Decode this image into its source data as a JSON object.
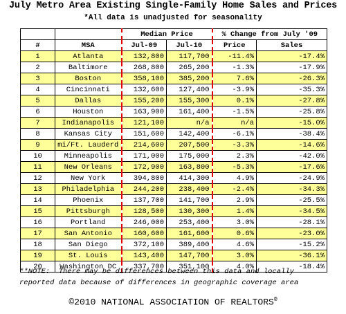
{
  "title": "July Metro Area Existing Single-Family Home Sales and Prices",
  "subtitle": "*All data is unadjusted for seasonality",
  "table": {
    "group_headers": {
      "median_price": "Median Price",
      "pct_change": "% Change from July '09"
    },
    "col_headers": {
      "rank": "#",
      "msa": "MSA",
      "jul09": "Jul-09",
      "jul10": "Jul-10",
      "price": "Price",
      "sales": "Sales"
    },
    "rows": [
      {
        "rank": "1",
        "msa": "Atlanta",
        "jul09": "132,800",
        "jul10": "117,700",
        "price": "-11.4%",
        "sales": "-17.4%"
      },
      {
        "rank": "2",
        "msa": "Baltimore",
        "jul09": "268,800",
        "jul10": "265,200",
        "price": "-1.3%",
        "sales": "-17.9%"
      },
      {
        "rank": "3",
        "msa": "Boston",
        "jul09": "358,100",
        "jul10": "385,200",
        "price": "7.6%",
        "sales": "-26.3%"
      },
      {
        "rank": "4",
        "msa": "Cincinnati",
        "jul09": "132,600",
        "jul10": "127,400",
        "price": "-3.9%",
        "sales": "-35.3%"
      },
      {
        "rank": "5",
        "msa": "Dallas",
        "jul09": "155,200",
        "jul10": "155,300",
        "price": "0.1%",
        "sales": "-27.8%"
      },
      {
        "rank": "6",
        "msa": "Houston",
        "jul09": "163,900",
        "jul10": "161,400",
        "price": "-1.5%",
        "sales": "-25.8%"
      },
      {
        "rank": "7",
        "msa": "Indianapolis",
        "jul09": "121,100",
        "jul10": "n/a",
        "price": "n/a",
        "sales": "-15.0%"
      },
      {
        "rank": "8",
        "msa": "Kansas City",
        "jul09": "151,600",
        "jul10": "142,400",
        "price": "-6.1%",
        "sales": "-38.4%"
      },
      {
        "rank": "9",
        "msa": "mi/Ft. Lauderd",
        "jul09": "214,600",
        "jul10": "207,500",
        "price": "-3.3%",
        "sales": "-14.6%"
      },
      {
        "rank": "10",
        "msa": "Minneapolis",
        "jul09": "171,000",
        "jul10": "175,000",
        "price": "2.3%",
        "sales": "-42.0%"
      },
      {
        "rank": "11",
        "msa": "New Orleans",
        "jul09": "172,900",
        "jul10": "163,800",
        "price": "-5.3%",
        "sales": "-17.6%"
      },
      {
        "rank": "12",
        "msa": "New York",
        "jul09": "394,800",
        "jul10": "414,300",
        "price": "4.9%",
        "sales": "-24.9%"
      },
      {
        "rank": "13",
        "msa": "Philadelphia",
        "jul09": "244,200",
        "jul10": "238,400",
        "price": "-2.4%",
        "sales": "-34.3%"
      },
      {
        "rank": "14",
        "msa": "Phoenix",
        "jul09": "137,700",
        "jul10": "141,700",
        "price": "2.9%",
        "sales": "-25.5%"
      },
      {
        "rank": "15",
        "msa": "Pittsburgh",
        "jul09": "128,500",
        "jul10": "130,300",
        "price": "1.4%",
        "sales": "-34.5%"
      },
      {
        "rank": "16",
        "msa": "Portland",
        "jul09": "246,000",
        "jul10": "253,400",
        "price": "3.0%",
        "sales": "-28.1%"
      },
      {
        "rank": "17",
        "msa": "San Antonio",
        "jul09": "160,600",
        "jul10": "161,600",
        "price": "0.6%",
        "sales": "-23.0%"
      },
      {
        "rank": "18",
        "msa": "San Diego",
        "jul09": "372,100",
        "jul10": "389,400",
        "price": "4.6%",
        "sales": "-15.2%"
      },
      {
        "rank": "19",
        "msa": "St. Louis",
        "jul09": "143,400",
        "jul10": "147,700",
        "price": "3.0%",
        "sales": "-36.1%"
      },
      {
        "rank": "20",
        "msa": "Washington DC",
        "jul09": "337,700",
        "jul10": "351,100",
        "price": "4.0%",
        "sales": "-18.4%"
      }
    ]
  },
  "note_line1": "**NOTE:  There may be differences between this data and locally",
  "note_line2": "reported data because of differences in geographic coverage area",
  "footer_text": "©2010 NATIONAL ASSOCIATION OF REALTORS",
  "footer_mark": "®",
  "colors": {
    "highlight_row": "#ffff99",
    "separator": "#e00000"
  }
}
